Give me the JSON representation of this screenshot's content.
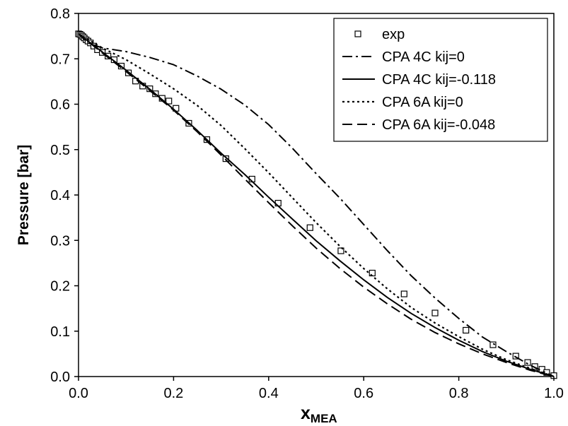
{
  "chart_data": {
    "type": "line",
    "title": "",
    "xlabel": {
      "main": "x",
      "subscript": "MEA"
    },
    "ylabel": "Pressure [bar]",
    "xlim": [
      0,
      1
    ],
    "ylim": [
      0,
      0.8
    ],
    "xticks": [
      "0.0",
      "0.2",
      "0.4",
      "0.6",
      "0.8",
      "1.0"
    ],
    "yticks": [
      "0.0",
      "0.1",
      "0.2",
      "0.3",
      "0.4",
      "0.5",
      "0.6",
      "0.7",
      "0.8"
    ],
    "grid": false,
    "legend_position": "top-right",
    "series": [
      {
        "name": "exp",
        "style": "markers",
        "x": [
          0.0,
          0.003,
          0.006,
          0.009,
          0.012,
          0.016,
          0.02,
          0.025,
          0.032,
          0.04,
          0.05,
          0.062,
          0.075,
          0.09,
          0.105,
          0.12,
          0.135,
          0.15,
          0.162,
          0.176,
          0.19,
          0.205,
          0.232,
          0.27,
          0.31,
          0.365,
          0.42,
          0.487,
          0.552,
          0.618,
          0.685,
          0.75,
          0.815,
          0.872,
          0.92,
          0.945,
          0.96,
          0.975,
          0.985,
          1.0
        ],
        "y": [
          0.755,
          0.754,
          0.752,
          0.749,
          0.746,
          0.742,
          0.739,
          0.735,
          0.728,
          0.72,
          0.714,
          0.706,
          0.698,
          0.684,
          0.669,
          0.651,
          0.64,
          0.634,
          0.623,
          0.613,
          0.607,
          0.591,
          0.558,
          0.522,
          0.48,
          0.435,
          0.382,
          0.328,
          0.277,
          0.228,
          0.182,
          0.14,
          0.102,
          0.07,
          0.045,
          0.031,
          0.022,
          0.016,
          0.009,
          0.002
        ]
      },
      {
        "name": "CPA 4C kij=0",
        "style": "dashdot",
        "x": [
          0.0,
          0.02,
          0.05,
          0.1,
          0.15,
          0.2,
          0.25,
          0.3,
          0.35,
          0.4,
          0.45,
          0.5,
          0.55,
          0.6,
          0.65,
          0.7,
          0.75,
          0.8,
          0.85,
          0.9,
          0.95,
          1.0
        ],
        "y": [
          0.755,
          0.735,
          0.724,
          0.716,
          0.703,
          0.687,
          0.662,
          0.633,
          0.598,
          0.555,
          0.503,
          0.447,
          0.393,
          0.335,
          0.277,
          0.222,
          0.173,
          0.128,
          0.087,
          0.055,
          0.025,
          0.0
        ]
      },
      {
        "name": "CPA 4C kij=-0.118",
        "style": "solid",
        "x": [
          0.0,
          0.05,
          0.1,
          0.15,
          0.2,
          0.25,
          0.3,
          0.35,
          0.4,
          0.45,
          0.5,
          0.55,
          0.6,
          0.65,
          0.7,
          0.75,
          0.8,
          0.85,
          0.9,
          0.95,
          1.0
        ],
        "y": [
          0.755,
          0.715,
          0.675,
          0.633,
          0.589,
          0.542,
          0.492,
          0.445,
          0.395,
          0.347,
          0.299,
          0.255,
          0.213,
          0.174,
          0.139,
          0.108,
          0.08,
          0.055,
          0.034,
          0.016,
          0.0
        ]
      },
      {
        "name": "CPA 6A kij=0",
        "style": "dotted",
        "x": [
          0.0,
          0.05,
          0.1,
          0.15,
          0.2,
          0.25,
          0.3,
          0.35,
          0.4,
          0.45,
          0.5,
          0.55,
          0.6,
          0.65,
          0.7,
          0.75,
          0.8,
          0.85,
          0.9,
          0.95,
          1.0
        ],
        "y": [
          0.755,
          0.724,
          0.698,
          0.667,
          0.634,
          0.597,
          0.553,
          0.502,
          0.449,
          0.394,
          0.339,
          0.287,
          0.238,
          0.193,
          0.152,
          0.118,
          0.088,
          0.06,
          0.037,
          0.018,
          0.0
        ]
      },
      {
        "name": "CPA 6A kij=-0.048",
        "style": "dashed",
        "x": [
          0.0,
          0.05,
          0.1,
          0.15,
          0.2,
          0.25,
          0.3,
          0.35,
          0.4,
          0.45,
          0.5,
          0.55,
          0.6,
          0.65,
          0.7,
          0.75,
          0.8,
          0.85,
          0.9,
          0.95,
          1.0
        ],
        "y": [
          0.755,
          0.713,
          0.672,
          0.63,
          0.587,
          0.539,
          0.488,
          0.435,
          0.383,
          0.332,
          0.283,
          0.238,
          0.197,
          0.16,
          0.126,
          0.097,
          0.072,
          0.05,
          0.031,
          0.014,
          0.0
        ]
      }
    ]
  }
}
